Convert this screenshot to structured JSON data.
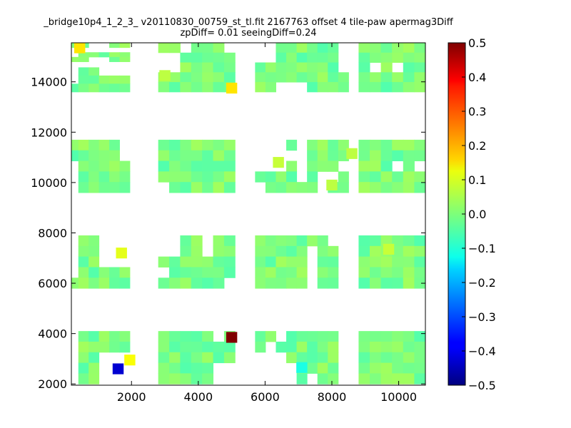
{
  "chart_data": {
    "type": "heatmap",
    "title": "_bridge10p4_1_2_3_ v20110830_00759_st_tl.fit 2167763 offset 4 tile-paw apermag3Diff",
    "subtitle": "zpDiff= 0.01 seeingDiff=0.24",
    "xlabel": "",
    "ylabel": "",
    "xlim": [
      200,
      10800
    ],
    "ylim": [
      1950,
      15550
    ],
    "x_ticks": [
      "2000",
      "4000",
      "6000",
      "8000",
      "10000"
    ],
    "x_tick_values": [
      2000,
      4000,
      6000,
      8000,
      10000
    ],
    "y_ticks": [
      "2000",
      "4000",
      "6000",
      "8000",
      "10000",
      "12000",
      "14000"
    ],
    "y_tick_values": [
      2000,
      4000,
      6000,
      8000,
      10000,
      12000,
      14000
    ],
    "cell_width": 330,
    "cell_height": 430,
    "colorbar": {
      "colormap": "jet",
      "range": [
        -0.5,
        0.5
      ],
      "ticks": [
        "0.5",
        "0.4",
        "0.3",
        "0.2",
        "0.1",
        "0.0",
        "−0.1",
        "−0.2",
        "−0.3",
        "−0.4",
        "−0.5"
      ],
      "tick_values": [
        0.5,
        0.4,
        0.3,
        0.2,
        0.1,
        0.0,
        -0.1,
        -0.2,
        -0.3,
        -0.4,
        -0.5
      ]
    },
    "blocks": [
      {
        "x0": 100,
        "x1": 1950,
        "y0": 14800,
        "y1": 15550,
        "cells": [
          "##..##",
          "......",
          ".#####",
          "##..##"
        ]
      },
      {
        "x0": 100,
        "x1": 1950,
        "y0": 13600,
        "y1": 14900,
        "cells": [
          "......",
          ".##...",
          ".#####",
          "######"
        ]
      },
      {
        "x0": 2800,
        "x1": 5100,
        "y0": 13600,
        "y1": 15550,
        "cells": [
          "##.###.",
          "..#####",
          "..#####",
          "#######",
          "#######"
        ]
      },
      {
        "x0": 5700,
        "x1": 8500,
        "y0": 13600,
        "y1": 15550,
        "cells": [
          "..######.",
          "..######.",
          "########.",
          "#########",
          "##...####"
        ]
      },
      {
        "x0": 8800,
        "x1": 10800,
        "y0": 13600,
        "y1": 15550,
        "cells": [
          "######",
          "######",
          "#.#.##",
          "######",
          "######"
        ]
      },
      {
        "x0": 100,
        "x1": 1950,
        "y0": 9600,
        "y1": 11700,
        "cells": [
          "#####.",
          "#####.",
          ".#####",
          ".#####",
          ".#####"
        ]
      },
      {
        "x0": 2800,
        "x1": 5100,
        "y0": 9600,
        "y1": 11700,
        "cells": [
          "#######",
          "#######",
          "#######",
          "#######",
          ".######"
        ]
      },
      {
        "x0": 5700,
        "x1": 8500,
        "y0": 9600,
        "y1": 11700,
        "cells": [
          "...#.####",
          ".....####",
          "...#.###.",
          "####.#..#",
          ".#####.##"
        ]
      },
      {
        "x0": 8800,
        "x1": 10800,
        "y0": 9600,
        "y1": 11700,
        "cells": [
          "######",
          "######",
          "###.#.",
          "######",
          "######"
        ]
      },
      {
        "x0": 100,
        "x1": 1950,
        "y0": 5800,
        "y1": 7900,
        "cells": [
          ".##...",
          ".##...",
          ".##...",
          ".#####",
          "######"
        ]
      },
      {
        "x0": 2800,
        "x1": 5100,
        "y0": 5800,
        "y1": 7900,
        "cells": [
          "..##.##",
          "..##.##",
          "#######",
          ".######",
          "######."
        ]
      },
      {
        "x0": 5700,
        "x1": 8500,
        "y0": 5800,
        "y1": 7900,
        "cells": [
          "#######..",
          "#####.##.",
          "#####.##.",
          "#####.##.",
          "#####.##."
        ]
      },
      {
        "x0": 8800,
        "x1": 10800,
        "y0": 5800,
        "y1": 7900,
        "cells": [
          "######",
          "######",
          "######",
          "######",
          "######"
        ]
      },
      {
        "x0": 100,
        "x1": 1950,
        "y0": 2000,
        "y1": 4100,
        "cells": [
          ".#####",
          ".#####",
          ".##...",
          ".##...",
          ".##..."
        ]
      },
      {
        "x0": 2800,
        "x1": 5100,
        "y0": 2000,
        "y1": 4100,
        "cells": [
          "#####.#",
          "#######",
          "#######",
          "#####..",
          "#####.."
        ]
      },
      {
        "x0": 5700,
        "x1": 8500,
        "y0": 2000,
        "y1": 4100,
        "cells": [
          "##.#####.",
          "#.######.",
          "...#####.",
          "....####.",
          "....#.##."
        ]
      },
      {
        "x0": 8800,
        "x1": 10800,
        "y0": 2000,
        "y1": 4100,
        "cells": [
          "######",
          "######",
          "######",
          "######",
          "######"
        ]
      }
    ],
    "outliers": [
      {
        "x": 450,
        "y": 15350,
        "value": 0.15
      },
      {
        "x": 5000,
        "y": 13750,
        "value": 0.15
      },
      {
        "x": 1700,
        "y": 7200,
        "value": 0.1
      },
      {
        "x": 1950,
        "y": 2950,
        "value": 0.12
      },
      {
        "x": 1600,
        "y": 2600,
        "value": -0.42
      },
      {
        "x": 5000,
        "y": 3850,
        "value": 0.5
      },
      {
        "x": 6400,
        "y": 10800,
        "value": 0.07
      },
      {
        "x": 8000,
        "y": 9900,
        "value": 0.06
      },
      {
        "x": 8600,
        "y": 11150,
        "value": 0.06
      },
      {
        "x": 3000,
        "y": 14250,
        "value": 0.06
      },
      {
        "x": 9700,
        "y": 7350,
        "value": 0.07
      },
      {
        "x": 7100,
        "y": 2650,
        "value": -0.1
      }
    ]
  }
}
